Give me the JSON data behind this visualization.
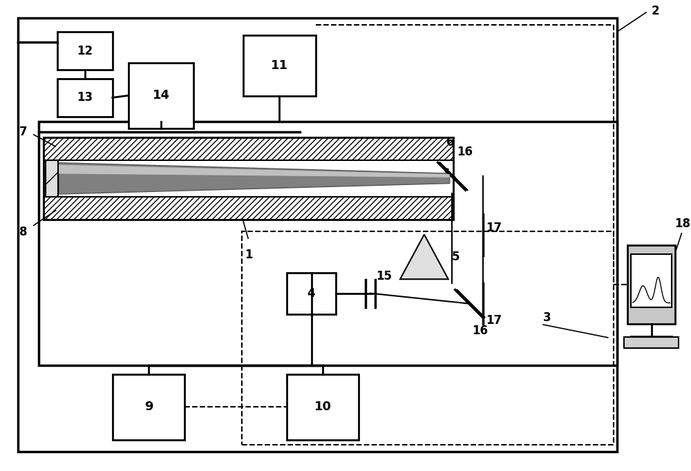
{
  "fig_width": 10.0,
  "fig_height": 6.82,
  "bg_color": "#ffffff",
  "lw_main": 2.0,
  "lw_thick": 2.5,
  "lw_thin": 1.5
}
